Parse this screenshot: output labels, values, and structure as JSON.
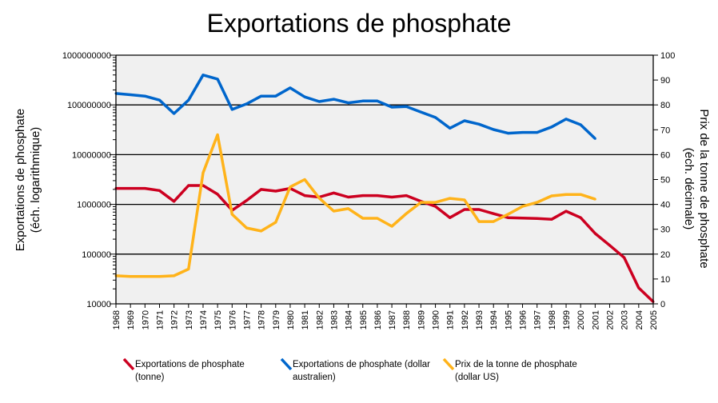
{
  "chart_data": {
    "type": "line",
    "title": "Exportations de phosphate",
    "ylabel_left": [
      "Exportations de phosphate",
      "(éch. logarithmique)"
    ],
    "ylabel_right": [
      "Prix de la tonne de phosphate",
      "(éch. décimale)"
    ],
    "left_axis": {
      "scale": "log",
      "ylim": [
        10000,
        1000000000
      ],
      "ticks": [
        "10000",
        "100000",
        "1000000",
        "10000000",
        "100000000",
        "1000000000"
      ]
    },
    "right_axis": {
      "scale": "linear",
      "ylim": [
        0,
        100
      ],
      "ticks": [
        "0",
        "10",
        "20",
        "30",
        "40",
        "50",
        "60",
        "70",
        "80",
        "90",
        "100"
      ]
    },
    "grid": "horizontal at each decade of left axis",
    "x": [
      "1968",
      "1969",
      "1970",
      "1971",
      "1972",
      "1973",
      "1974",
      "1975",
      "1976",
      "1977",
      "1978",
      "1979",
      "1980",
      "1981",
      "1982",
      "1983",
      "1984",
      "1985",
      "1986",
      "1987",
      "1988",
      "1989",
      "1990",
      "1991",
      "1992",
      "1993",
      "1994",
      "1995",
      "1996",
      "1997",
      "1998",
      "1999",
      "2000",
      "2001",
      "2002",
      "2003",
      "2004",
      "2005"
    ],
    "legend_position": "bottom",
    "series": [
      {
        "name": "Exportations de phosphate (tonne)",
        "legend_lines": [
          "Exportations de phosphate",
          "(tonne)"
        ],
        "axis": "left",
        "color": "#cc0020",
        "values": [
          2100000,
          2100000,
          2100000,
          1900000,
          1150000,
          2400000,
          2400000,
          1600000,
          760000,
          1200000,
          2000000,
          1850000,
          2100000,
          1500000,
          1400000,
          1700000,
          1400000,
          1500000,
          1500000,
          1400000,
          1500000,
          1150000,
          910000,
          540000,
          790000,
          790000,
          650000,
          540000,
          530000,
          520000,
          500000,
          730000,
          540000,
          260000,
          150000,
          85000,
          21000,
          11000
        ]
      },
      {
        "name": "Exportations de phosphate (dollar australien)",
        "legend_lines": [
          "Exportations de phosphate (dollar",
          "australien)"
        ],
        "axis": "left",
        "color": "#0066cc",
        "values": [
          170000000,
          160000000,
          150000000,
          125000000,
          67000000,
          125000000,
          400000000,
          330000000,
          81000000,
          105000000,
          150000000,
          150000000,
          220000000,
          145000000,
          117000000,
          130000000,
          110000000,
          120000000,
          120000000,
          90000000,
          93000000,
          72000000,
          56000000,
          34000000,
          48000000,
          41000000,
          32000000,
          27000000,
          28000000,
          28000000,
          36000000,
          52000000,
          40000000,
          21000000,
          null,
          null,
          null,
          null
        ]
      },
      {
        "name": "Prix de la tonne de phosphate (dollar US)",
        "legend_lines": [
          "Prix de la tonne de phosphate",
          "(dollar US)"
        ],
        "axis": "right",
        "color": "#ffb31a",
        "values": [
          11.3,
          11,
          11,
          11,
          11.3,
          14,
          52.7,
          68,
          36,
          30.5,
          29.3,
          32.8,
          47,
          50,
          42.5,
          37.3,
          38.3,
          34.4,
          34.4,
          31.2,
          36.3,
          40.8,
          40.8,
          42.4,
          41.8,
          33.1,
          33.1,
          36,
          39.2,
          40.8,
          43.4,
          44,
          44,
          42.1,
          null,
          null,
          null,
          null
        ]
      }
    ]
  }
}
